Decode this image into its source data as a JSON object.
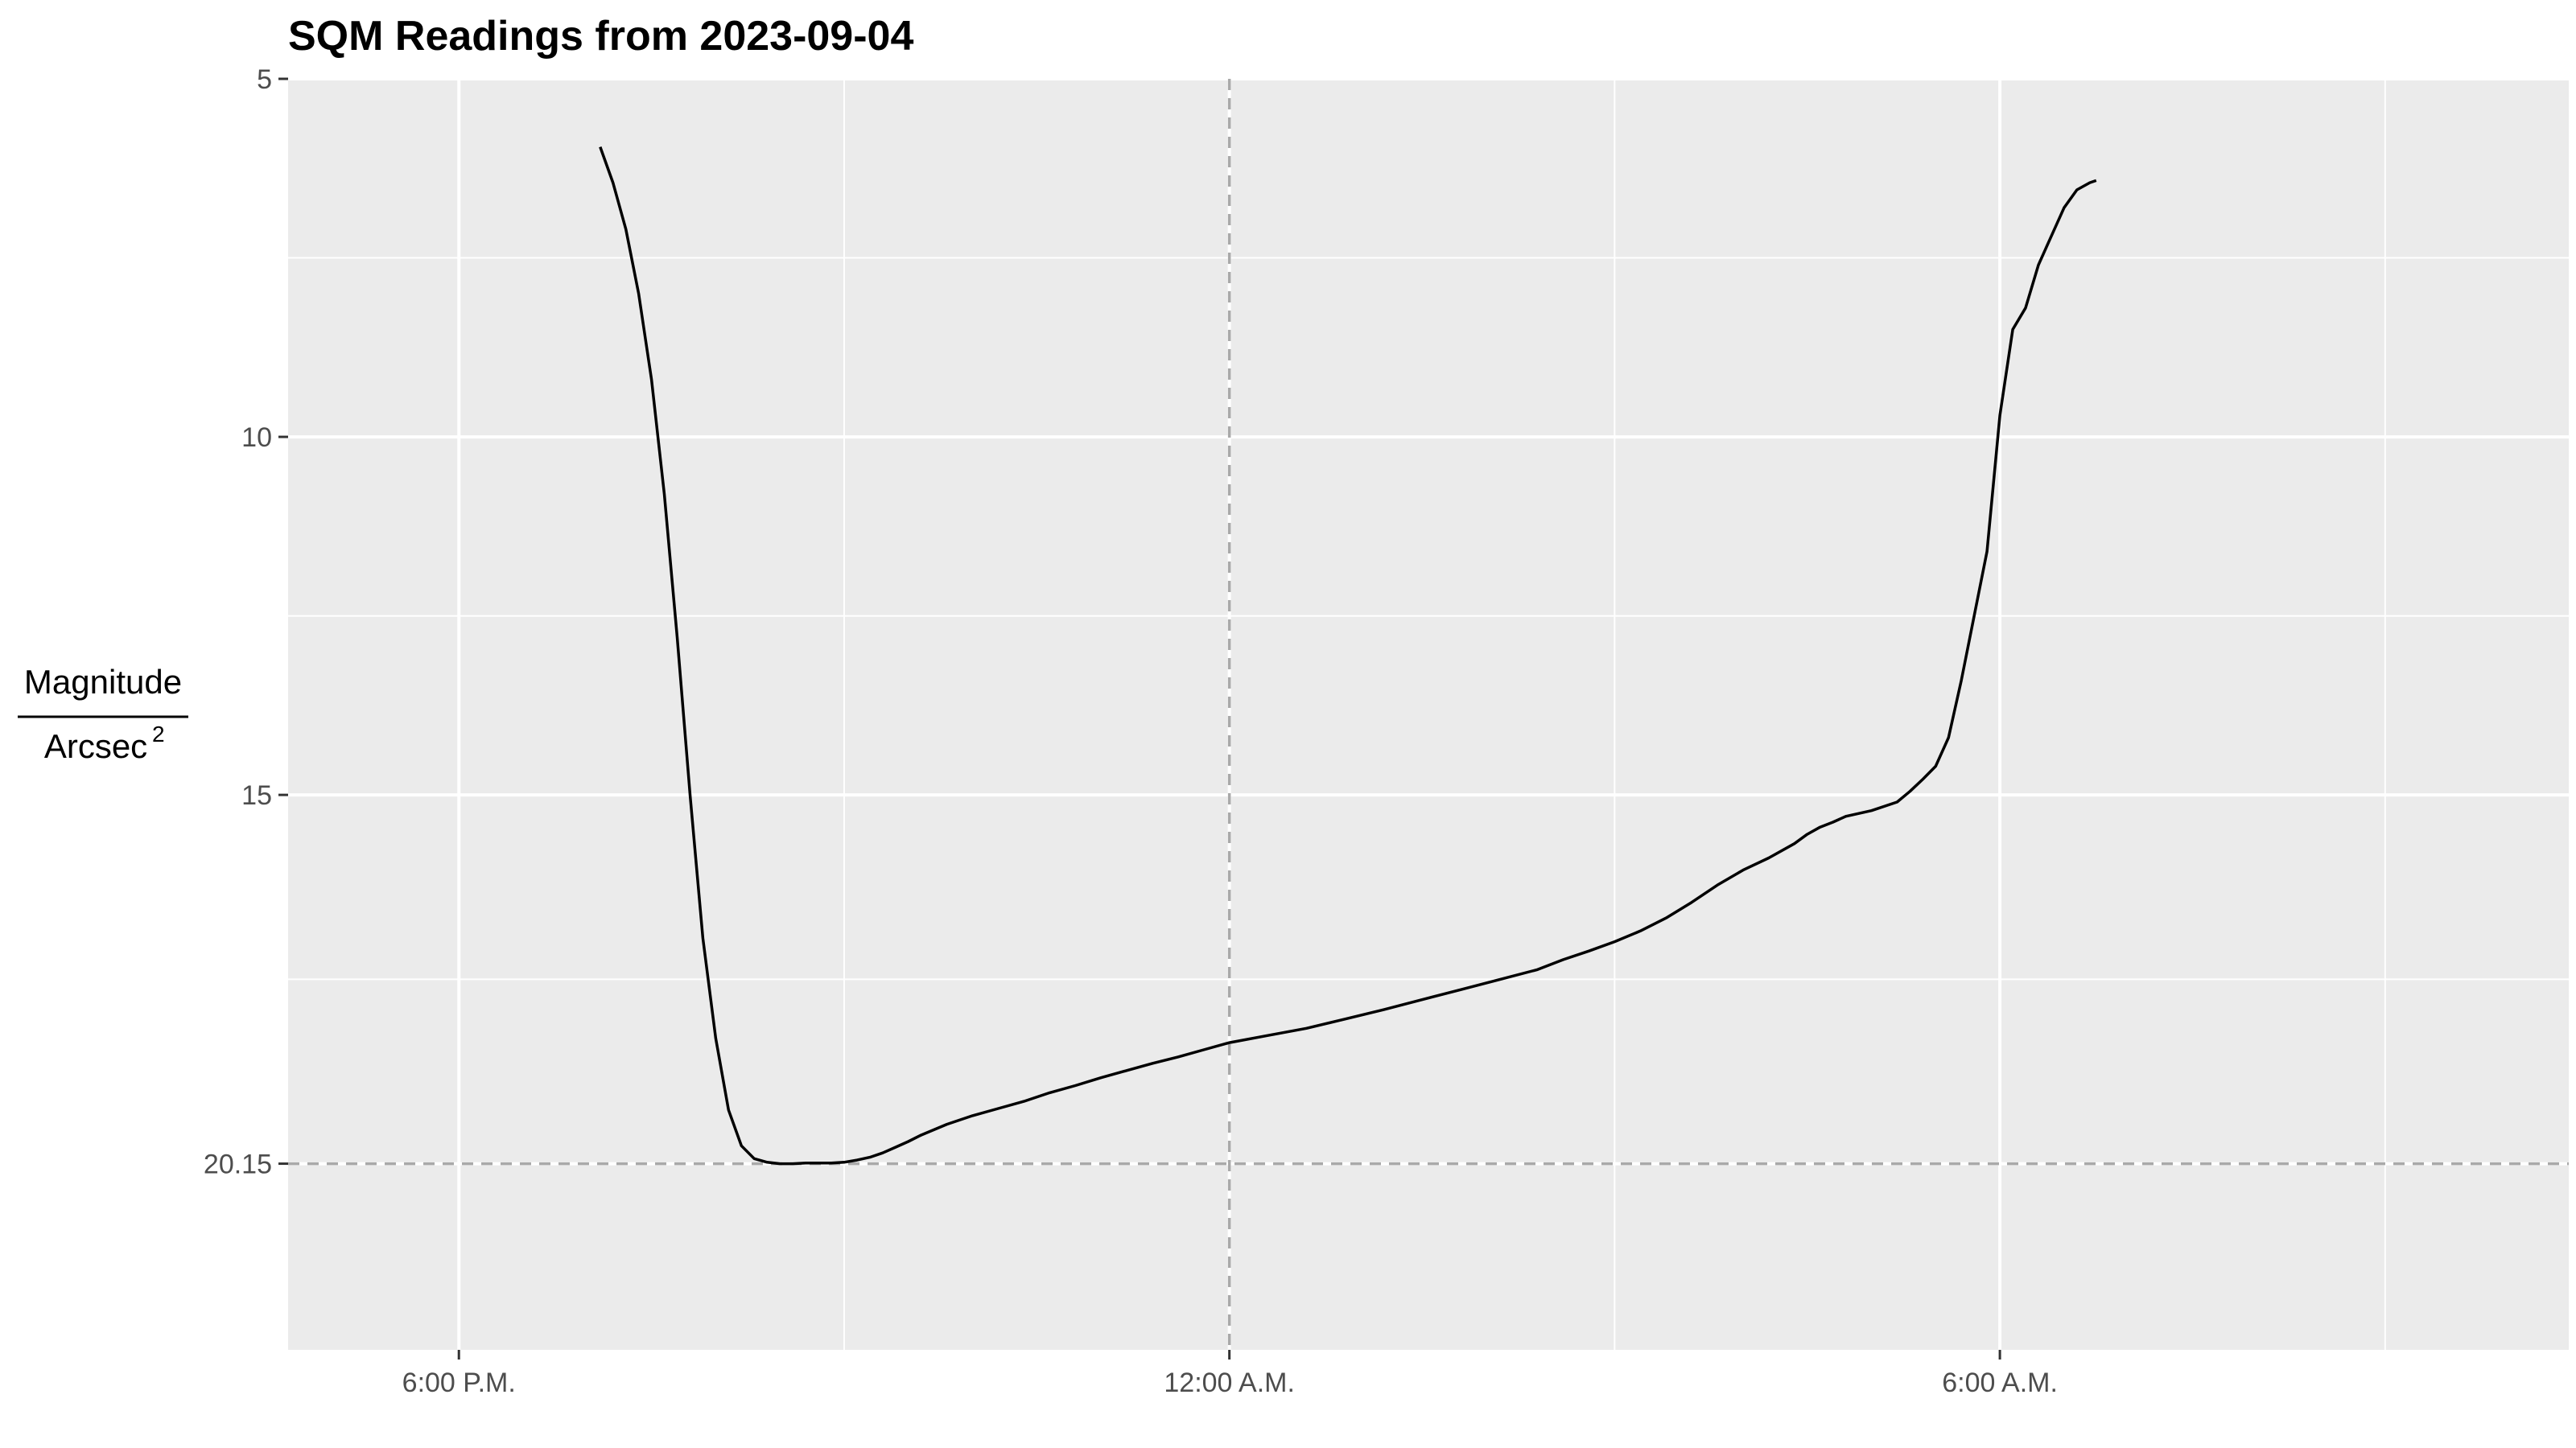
{
  "chart_data": {
    "type": "line",
    "title": "SQM Readings from 2023-09-04",
    "ylabel": {
      "numerator": "Magnitude",
      "denominator_base": "Arcsec",
      "denominator_exponent": "2"
    },
    "y_reversed": true,
    "ylim": [
      5,
      22.75
    ],
    "y_ticks": [
      {
        "value": 5,
        "label": "5"
      },
      {
        "value": 10,
        "label": "10"
      },
      {
        "value": 15,
        "label": "15"
      },
      {
        "value": 20.15,
        "label": "20.15"
      }
    ],
    "x_unit": "hour of night (0 = 12:00 A.M.)",
    "xlim": [
      -7.33,
      10.43
    ],
    "x_ticks": [
      {
        "value": -6,
        "label": "6:00 P.M."
      },
      {
        "value": 0,
        "label": "12:00 A.M."
      },
      {
        "value": 6,
        "label": "6:00 A.M."
      }
    ],
    "reference_lines": {
      "vertical_x": 0,
      "horizontal_y": 20.15
    },
    "grid": true,
    "series": [
      {
        "color": "#000000",
        "x": [
          -4.9,
          -4.8,
          -4.7,
          -4.6,
          -4.5,
          -4.4,
          -4.3,
          -4.2,
          -4.1,
          -4.0,
          -3.9,
          -3.8,
          -3.7,
          -3.6,
          -3.5,
          -3.4,
          -3.3,
          -3.2,
          -3.1,
          -3.0,
          -2.9,
          -2.8,
          -2.7,
          -2.6,
          -2.5,
          -2.4,
          -2.2,
          -2.0,
          -1.8,
          -1.6,
          -1.4,
          -1.2,
          -1.0,
          -0.8,
          -0.6,
          -0.4,
          -0.2,
          0.0,
          0.3,
          0.6,
          0.9,
          1.2,
          1.5,
          1.8,
          2.1,
          2.4,
          2.6,
          2.8,
          3.0,
          3.2,
          3.4,
          3.6,
          3.8,
          4.0,
          4.2,
          4.4,
          4.5,
          4.6,
          4.7,
          4.8,
          5.0,
          5.2,
          5.3,
          5.4,
          5.5,
          5.6,
          5.7,
          5.9,
          6.0,
          6.1,
          6.2,
          6.3,
          6.4,
          6.5,
          6.6,
          6.7,
          6.75
        ],
        "y": [
          5.95,
          6.45,
          7.1,
          8.0,
          9.2,
          10.8,
          12.8,
          15.0,
          17.0,
          18.4,
          19.4,
          19.9,
          20.08,
          20.13,
          20.15,
          20.15,
          20.14,
          20.14,
          20.14,
          20.13,
          20.1,
          20.06,
          20.0,
          19.92,
          19.84,
          19.75,
          19.6,
          19.48,
          19.38,
          19.28,
          19.16,
          19.06,
          18.95,
          18.85,
          18.75,
          18.66,
          18.56,
          18.46,
          18.36,
          18.26,
          18.13,
          18.0,
          17.86,
          17.72,
          17.58,
          17.44,
          17.3,
          17.18,
          17.05,
          16.9,
          16.72,
          16.5,
          16.26,
          16.05,
          15.88,
          15.68,
          15.55,
          15.45,
          15.38,
          15.3,
          15.22,
          15.1,
          14.95,
          14.78,
          14.6,
          14.2,
          13.4,
          11.6,
          9.7,
          8.5,
          8.2,
          7.6,
          7.2,
          6.8,
          6.55,
          6.45,
          6.42
        ]
      }
    ]
  }
}
